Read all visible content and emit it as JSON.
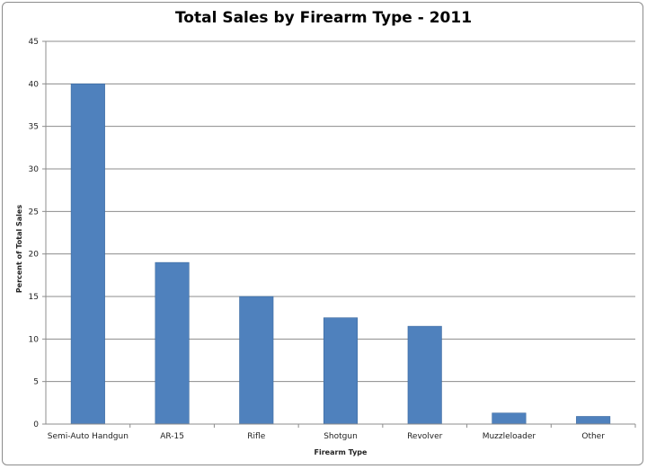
{
  "chart_data": {
    "type": "bar",
    "title": "Total Sales by Firearm Type - 2011",
    "xlabel": "Firearm Type",
    "ylabel": "Percent of Total Sales",
    "categories": [
      "Semi-Auto Handgun",
      "AR-15",
      "Rifle",
      "Shotgun",
      "Revolver",
      "Muzzleloader",
      "Other"
    ],
    "values": [
      40,
      19,
      15,
      12.5,
      11.5,
      1.3,
      0.9
    ],
    "ylim": [
      0,
      45
    ],
    "yticks": [
      0,
      5,
      10,
      15,
      20,
      25,
      30,
      35,
      40,
      45
    ],
    "grid": true,
    "legend": "none",
    "colors": {
      "bar": "#4f81bd",
      "bar_edge": "#3b6aa0",
      "grid": "#8c8c8c",
      "axis": "#8c8c8c"
    }
  }
}
